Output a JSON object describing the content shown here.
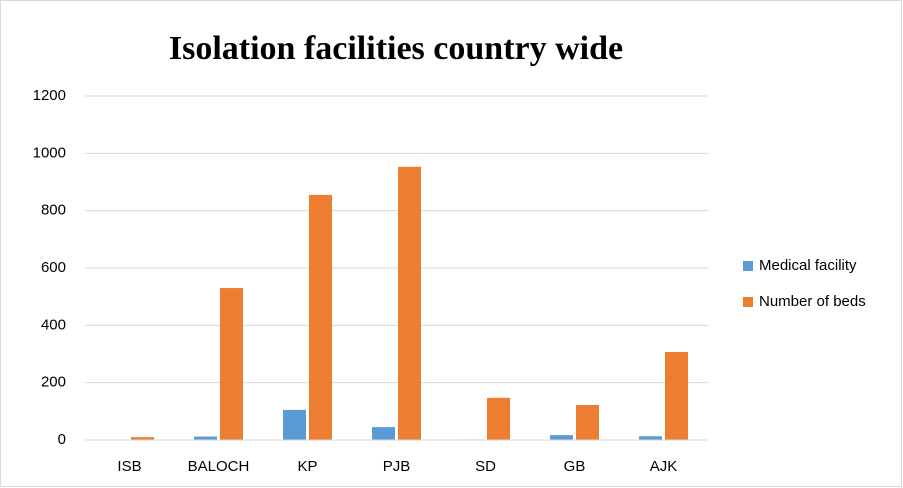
{
  "chart_data": {
    "type": "bar",
    "title": "Isolation facilities country wide",
    "categories": [
      "ISB",
      "BALOCH",
      "KP",
      "PJB",
      "SD",
      "GB",
      "AJK"
    ],
    "series": [
      {
        "name": "Medical facility",
        "color": "#5b9bd5",
        "values": [
          1,
          12,
          105,
          45,
          2,
          17,
          13
        ]
      },
      {
        "name": "Number of beds",
        "color": "#ed7d31",
        "values": [
          10,
          530,
          855,
          953,
          147,
          122,
          307
        ]
      }
    ],
    "ylim": [
      0,
      1200
    ],
    "yticks": [
      0,
      200,
      400,
      600,
      800,
      1000,
      1200
    ],
    "grid": true,
    "legend": "right"
  }
}
